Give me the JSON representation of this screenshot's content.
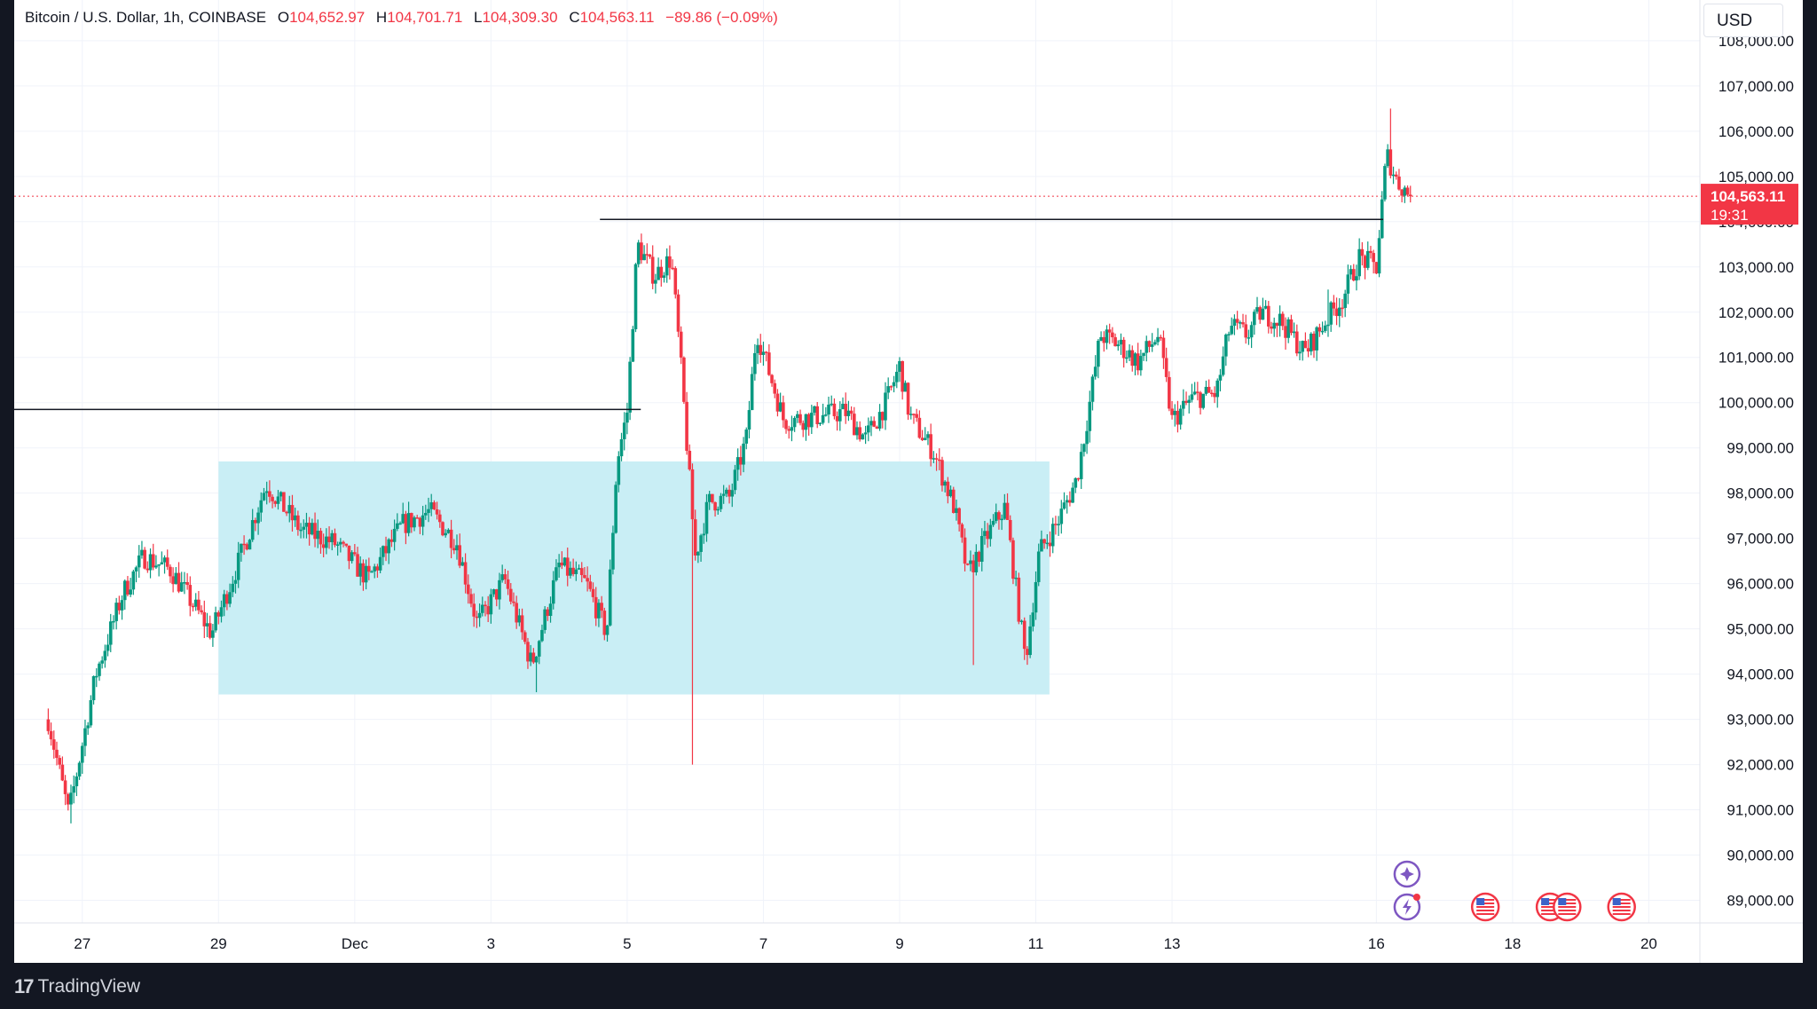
{
  "legend": {
    "symbol": "Bitcoin / U.S. Dollar, 1h, COINBASE",
    "open_label": "O",
    "open": "104,652.97",
    "high_label": "H",
    "high": "104,701.71",
    "low_label": "L",
    "low": "104,309.30",
    "close_label": "C",
    "close": "104,563.11",
    "change": "−89.86 (−0.09%)"
  },
  "currency": "USD",
  "price_tag": {
    "price": "104,563.11",
    "countdown": "19:31"
  },
  "brand": "TradingView",
  "colors": {
    "up": "#089981",
    "down": "#f23645",
    "zone": "#c9eef5",
    "event_icon": "#7e57c2"
  },
  "chart_data": {
    "type": "candlestick",
    "interval": "1h",
    "ylim": [
      88500,
      108900
    ],
    "y_ticks": [
      "108,000.00",
      "107,000.00",
      "106,000.00",
      "105,000.00",
      "104,000.00",
      "103,000.00",
      "102,000.00",
      "101,000.00",
      "100,000.00",
      "99,000.00",
      "98,000.00",
      "97,000.00",
      "96,000.00",
      "95,000.00",
      "94,000.00",
      "93,000.00",
      "92,000.00",
      "91,000.00",
      "90,000.00",
      "89,000.00"
    ],
    "y_tick_values": [
      108000,
      107000,
      106000,
      105000,
      104000,
      103000,
      102000,
      101000,
      100000,
      99000,
      98000,
      97000,
      96000,
      95000,
      94000,
      93000,
      92000,
      91000,
      90000,
      89000
    ],
    "x_ticks": [
      {
        "label": "27",
        "day": 27
      },
      {
        "label": "29",
        "day": 29
      },
      {
        "label": "Dec",
        "day": 31
      },
      {
        "label": "3",
        "day": 33
      },
      {
        "label": "5",
        "day": 35
      },
      {
        "label": "7",
        "day": 37
      },
      {
        "label": "9",
        "day": 39
      },
      {
        "label": "11",
        "day": 41
      },
      {
        "label": "13",
        "day": 43
      },
      {
        "label": "16",
        "day": 46
      },
      {
        "label": "18",
        "day": 48
      },
      {
        "label": "20",
        "day": 50
      }
    ],
    "last_price": 104563.11,
    "anchors": [
      [
        26.5,
        93000
      ],
      [
        26.8,
        90900
      ],
      [
        27.2,
        94000
      ],
      [
        27.6,
        95800
      ],
      [
        27.9,
        96600
      ],
      [
        28.3,
        96300
      ],
      [
        28.9,
        94900
      ],
      [
        29.3,
        96500
      ],
      [
        29.7,
        98200
      ],
      [
        30.2,
        97200
      ],
      [
        30.7,
        96900
      ],
      [
        31.2,
        96100
      ],
      [
        31.7,
        97300
      ],
      [
        32.1,
        97600
      ],
      [
        32.5,
        96900
      ],
      [
        32.8,
        95100
      ],
      [
        33.2,
        96100
      ],
      [
        33.6,
        94200
      ],
      [
        34.0,
        96400
      ],
      [
        34.4,
        96000
      ],
      [
        34.7,
        94900
      ],
      [
        34.85,
        98700
      ],
      [
        35.0,
        99800
      ],
      [
        35.15,
        103500
      ],
      [
        35.4,
        102800
      ],
      [
        35.65,
        103200
      ],
      [
        35.8,
        100600
      ],
      [
        35.9,
        98600
      ],
      [
        36.0,
        96600
      ],
      [
        36.2,
        97800
      ],
      [
        36.5,
        97900
      ],
      [
        36.75,
        99200
      ],
      [
        36.9,
        101600
      ],
      [
        37.3,
        99600
      ],
      [
        37.8,
        99700
      ],
      [
        38.2,
        99800
      ],
      [
        38.5,
        99200
      ],
      [
        38.8,
        100000
      ],
      [
        39.0,
        100800
      ],
      [
        39.15,
        99700
      ],
      [
        39.5,
        98900
      ],
      [
        39.8,
        97700
      ],
      [
        40.0,
        96200
      ],
      [
        40.3,
        97100
      ],
      [
        40.55,
        97700
      ],
      [
        40.75,
        95400
      ],
      [
        40.85,
        94300
      ],
      [
        41.05,
        96700
      ],
      [
        41.3,
        97300
      ],
      [
        41.6,
        98300
      ],
      [
        41.75,
        99600
      ],
      [
        41.95,
        101500
      ],
      [
        42.2,
        101300
      ],
      [
        42.5,
        100900
      ],
      [
        42.8,
        101500
      ],
      [
        43.0,
        99600
      ],
      [
        43.3,
        100100
      ],
      [
        43.65,
        100200
      ],
      [
        43.85,
        101700
      ],
      [
        44.1,
        101500
      ],
      [
        44.3,
        102000
      ],
      [
        44.6,
        101800
      ],
      [
        44.95,
        101100
      ],
      [
        45.3,
        101900
      ],
      [
        45.5,
        102300
      ],
      [
        45.75,
        103200
      ],
      [
        46.0,
        103000
      ],
      [
        46.15,
        105500
      ],
      [
        46.3,
        104900
      ],
      [
        46.5,
        104563
      ]
    ],
    "anchor_points": [
      [
        46.2,
        106500
      ],
      [
        35.95,
        92000
      ],
      [
        26.85,
        90700
      ],
      [
        33.65,
        93600
      ],
      [
        40.1,
        94200
      ],
      [
        45.3,
        102500
      ]
    ],
    "zone": {
      "x_from": 29.0,
      "x_to": 41.2,
      "y_from": 93550,
      "y_to": 98700
    },
    "levels": [
      {
        "price": 99850,
        "x_from": 26.0,
        "x_to": 35.2
      },
      {
        "price": 104050,
        "x_from": 34.6,
        "x_to": 46.1
      }
    ],
    "events": [
      {
        "icon": "star-event-icon",
        "day": 46.45,
        "row": 1
      },
      {
        "icon": "lightning-event-icon",
        "day": 46.45,
        "row": 2
      },
      {
        "icon": "us-flag-icon",
        "day": 47.6,
        "row": 2
      },
      {
        "icon": "us-flag-icon",
        "day": 48.55,
        "row": 2
      },
      {
        "icon": "us-flag-icon",
        "day": 48.8,
        "row": 2
      },
      {
        "icon": "us-flag-icon",
        "day": 49.6,
        "row": 2
      }
    ]
  }
}
